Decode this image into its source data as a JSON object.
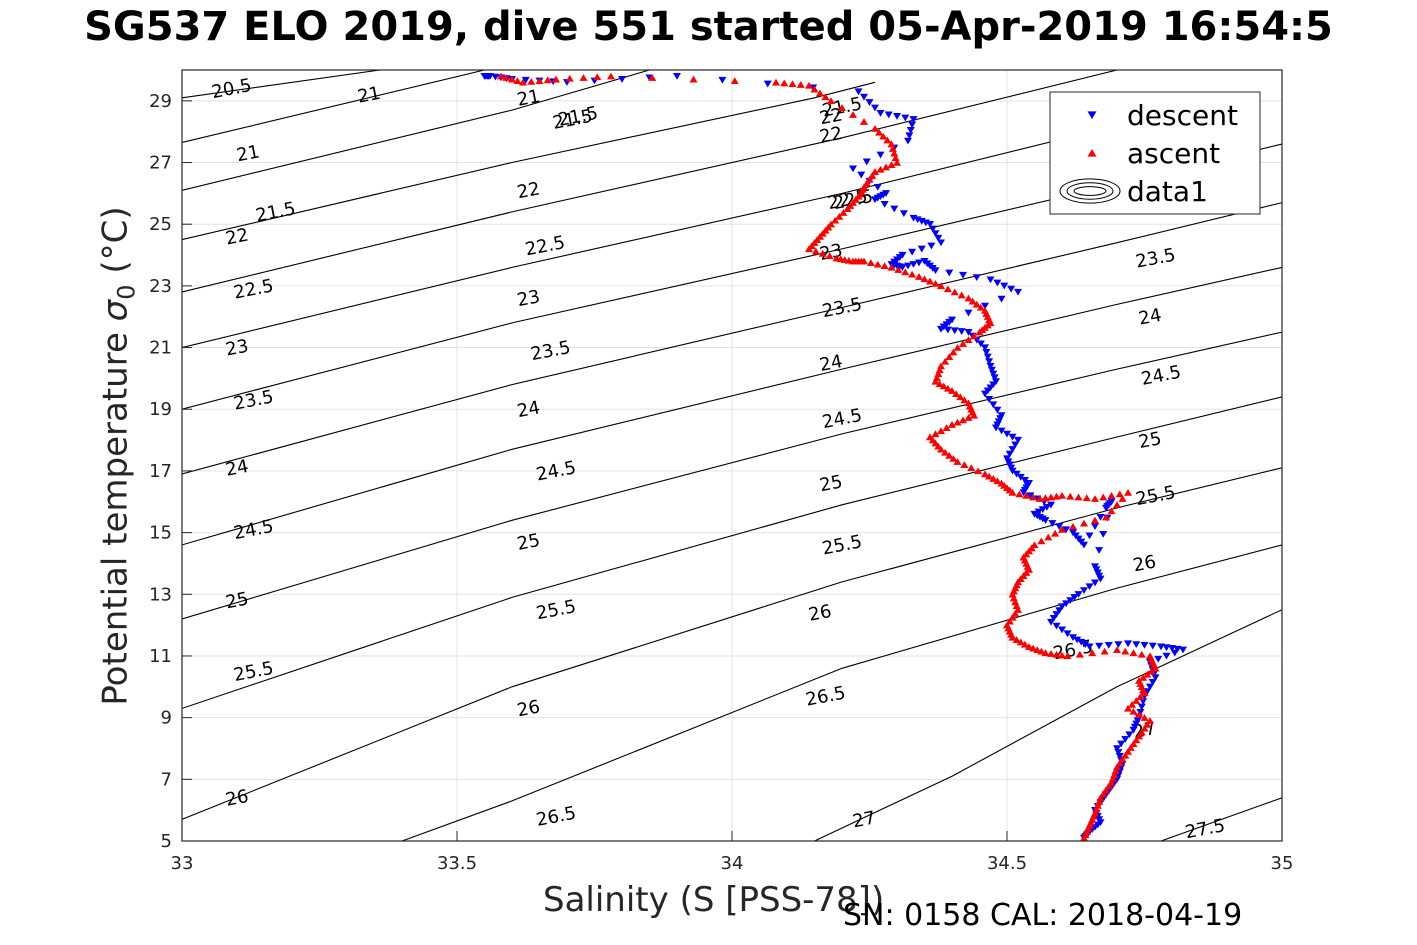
{
  "chart_data": {
    "type": "scatter",
    "title": "SG537 ELO 2019, dive 551 started 05-Apr-2019 16:54:5",
    "xlabel": "Salinity (S [PSS-78])",
    "ylabel_main": "Potential temperature",
    "ylabel_symbol": "σ",
    "ylabel_subscript": "0",
    "ylabel_unit": "(°C)",
    "footer": "SN: 0158  CAL: 2018-04-19",
    "xlim": [
      33,
      35
    ],
    "ylim": [
      5,
      30
    ],
    "xticks": [
      "33",
      "33.5",
      "34",
      "34.5",
      "35"
    ],
    "yticks": [
      "5",
      "7",
      "9",
      "11",
      "13",
      "15",
      "17",
      "19",
      "21",
      "23",
      "25",
      "27",
      "29"
    ],
    "grid": true,
    "legend_position": "top-right",
    "legend": [
      {
        "label": "descent",
        "marker": "triangle-down",
        "color": "#0000ff"
      },
      {
        "label": "ascent",
        "marker": "triangle-up",
        "color": "#ff0000"
      },
      {
        "label": "data1",
        "marker": "contour"
      }
    ],
    "contours": [
      {
        "level": "20.5",
        "p": [
          [
            33.0,
            29.1
          ],
          [
            33.36,
            30.0
          ]
        ]
      },
      {
        "level": "21",
        "p": [
          [
            33.0,
            27.65
          ],
          [
            33.55,
            30.0
          ]
        ]
      },
      {
        "level": "21.5",
        "p": [
          [
            33.0,
            26.1
          ],
          [
            33.6,
            28.7
          ],
          [
            33.85,
            30.0
          ]
        ]
      },
      {
        "level": "22",
        "p": [
          [
            33.0,
            24.5
          ],
          [
            33.6,
            27.0
          ],
          [
            34.15,
            29.1
          ],
          [
            34.26,
            29.6
          ]
        ]
      },
      {
        "level": "22.5",
        "p": [
          [
            33.0,
            22.8
          ],
          [
            33.6,
            25.4
          ],
          [
            34.2,
            27.8
          ],
          [
            34.7,
            30.0
          ]
        ]
      },
      {
        "level": "23",
        "p": [
          [
            33.0,
            21.0
          ],
          [
            33.6,
            23.6
          ],
          [
            34.2,
            26.0
          ],
          [
            34.7,
            28.2
          ],
          [
            34.95,
            29.1
          ]
        ]
      },
      {
        "level": "23.5",
        "p": [
          [
            33.0,
            19.0
          ],
          [
            33.6,
            21.8
          ],
          [
            34.2,
            24.2
          ],
          [
            34.7,
            26.3
          ],
          [
            35.0,
            27.6
          ]
        ]
      },
      {
        "level": "24",
        "p": [
          [
            33.0,
            16.9
          ],
          [
            33.6,
            19.8
          ],
          [
            34.2,
            22.3
          ],
          [
            34.7,
            24.4
          ],
          [
            35.0,
            25.7
          ]
        ]
      },
      {
        "level": "24.5",
        "p": [
          [
            33.0,
            14.6
          ],
          [
            33.6,
            17.7
          ],
          [
            34.2,
            20.3
          ],
          [
            34.7,
            22.4
          ],
          [
            35.0,
            23.6
          ]
        ]
      },
      {
        "level": "25",
        "p": [
          [
            33.0,
            12.2
          ],
          [
            33.6,
            15.4
          ],
          [
            34.2,
            18.2
          ],
          [
            34.7,
            20.3
          ],
          [
            35.0,
            21.5
          ]
        ]
      },
      {
        "level": "25.5",
        "p": [
          [
            33.0,
            9.3
          ],
          [
            33.6,
            12.9
          ],
          [
            34.2,
            15.9
          ],
          [
            34.7,
            18.1
          ],
          [
            35.0,
            19.4
          ]
        ]
      },
      {
        "level": "26",
        "p": [
          [
            33.0,
            5.7
          ],
          [
            33.6,
            10.0
          ],
          [
            34.2,
            13.4
          ],
          [
            34.7,
            15.8
          ],
          [
            35.0,
            17.1
          ]
        ]
      },
      {
        "level": "26.5",
        "p": [
          [
            33.4,
            5.0
          ],
          [
            33.6,
            6.3
          ],
          [
            34.2,
            10.6
          ],
          [
            34.7,
            13.2
          ],
          [
            35.0,
            14.6
          ]
        ]
      },
      {
        "level": "27",
        "p": [
          [
            34.15,
            5.0
          ],
          [
            34.4,
            7.1
          ],
          [
            34.7,
            10.0
          ],
          [
            35.0,
            12.5
          ]
        ]
      },
      {
        "level": "27.5",
        "p": [
          [
            34.78,
            5.0
          ],
          [
            35.0,
            6.4
          ]
        ]
      }
    ],
    "contour_labels": [
      {
        "text": "20.5",
        "s": 33.09,
        "t": 29.4
      },
      {
        "text": "21",
        "s": 33.34,
        "t": 29.2
      },
      {
        "text": "21.5",
        "s": 33.71,
        "t": 28.4
      },
      {
        "text": "22",
        "s": 34.18,
        "t": 28.5
      },
      {
        "text": "22.5",
        "s": 34.22,
        "t": 25.8
      },
      {
        "text": "23",
        "s": 34.18,
        "t": 24.1
      },
      {
        "text": "23.5",
        "s": 34.2,
        "t": 22.3
      },
      {
        "text": "24",
        "s": 34.18,
        "t": 20.5
      },
      {
        "text": "24.5",
        "s": 34.2,
        "t": 18.7
      },
      {
        "text": "25",
        "s": 34.18,
        "t": 16.6
      },
      {
        "text": "25.5",
        "s": 34.2,
        "t": 14.6
      },
      {
        "text": "26",
        "s": 34.16,
        "t": 12.4
      },
      {
        "text": "26.5",
        "s": 34.17,
        "t": 9.7
      },
      {
        "text": "27",
        "s": 34.24,
        "t": 5.7
      },
      {
        "text": "27.5",
        "s": 34.86,
        "t": 5.4
      },
      {
        "text": "21",
        "s": 33.12,
        "t": 27.3
      },
      {
        "text": "21.5",
        "s": 33.17,
        "t": 25.4
      },
      {
        "text": "22",
        "s": 33.1,
        "t": 24.6
      },
      {
        "text": "22.5",
        "s": 33.13,
        "t": 22.9
      },
      {
        "text": "23",
        "s": 33.1,
        "t": 21.0
      },
      {
        "text": "23.5",
        "s": 33.13,
        "t": 19.3
      },
      {
        "text": "24",
        "s": 33.1,
        "t": 17.1
      },
      {
        "text": "24.5",
        "s": 33.13,
        "t": 15.1
      },
      {
        "text": "25",
        "s": 33.1,
        "t": 12.8
      },
      {
        "text": "25.5",
        "s": 33.13,
        "t": 10.5
      },
      {
        "text": "26",
        "s": 33.1,
        "t": 6.4
      },
      {
        "text": "21",
        "s": 33.63,
        "t": 29.1
      },
      {
        "text": "21.5",
        "s": 33.72,
        "t": 28.5
      },
      {
        "text": "22",
        "s": 33.63,
        "t": 26.1
      },
      {
        "text": "22.5",
        "s": 33.66,
        "t": 24.3
      },
      {
        "text": "23",
        "s": 33.63,
        "t": 22.6
      },
      {
        "text": "23.5",
        "s": 33.67,
        "t": 20.9
      },
      {
        "text": "24",
        "s": 33.63,
        "t": 19.0
      },
      {
        "text": "24.5",
        "s": 33.68,
        "t": 17.0
      },
      {
        "text": "25",
        "s": 33.63,
        "t": 14.7
      },
      {
        "text": "25.5",
        "s": 33.68,
        "t": 12.5
      },
      {
        "text": "26",
        "s": 33.63,
        "t": 9.3
      },
      {
        "text": "26.5",
        "s": 33.68,
        "t": 5.8
      },
      {
        "text": "21.5",
        "s": 34.2,
        "t": 28.8
      },
      {
        "text": "22",
        "s": 34.18,
        "t": 27.9
      },
      {
        "text": "22.5",
        "s": 34.21,
        "t": 25.8
      },
      {
        "text": "23",
        "s": 34.18,
        "t": 24.1
      },
      {
        "text": "23.5",
        "s": 34.2,
        "t": 22.3
      },
      {
        "text": "24",
        "s": 34.18,
        "t": 20.5
      },
      {
        "text": "24.5",
        "s": 34.2,
        "t": 18.7
      },
      {
        "text": "25",
        "s": 34.18,
        "t": 16.6
      },
      {
        "text": "25.5",
        "s": 34.2,
        "t": 14.6
      },
      {
        "text": "26",
        "s": 34.16,
        "t": 12.4
      },
      {
        "text": "26.5",
        "s": 34.17,
        "t": 9.7
      },
      {
        "text": "27",
        "s": 34.24,
        "t": 5.7
      },
      {
        "text": "23.5",
        "s": 34.77,
        "t": 23.9
      },
      {
        "text": "24",
        "s": 34.76,
        "t": 22.0
      },
      {
        "text": "24.5",
        "s": 34.78,
        "t": 20.1
      },
      {
        "text": "25",
        "s": 34.76,
        "t": 18.0
      },
      {
        "text": "25.5",
        "s": 34.77,
        "t": 16.2
      },
      {
        "text": "26",
        "s": 34.75,
        "t": 14.0
      },
      {
        "text": "26.5",
        "s": 34.62,
        "t": 11.2
      },
      {
        "text": "27",
        "s": 34.75,
        "t": 8.6
      },
      {
        "text": "27.5",
        "s": 34.86,
        "t": 5.4
      }
    ],
    "series": [
      {
        "name": "descent",
        "color": "#0000ff",
        "marker": "triangle-down",
        "x": [
          33.55,
          33.56,
          33.6,
          33.7,
          33.9,
          34.23,
          34.27,
          34.33,
          34.32,
          34.22,
          34.28,
          34.26,
          34.33,
          34.36,
          34.38,
          34.31,
          34.29,
          34.31,
          34.35,
          34.37,
          34.47,
          34.52,
          34.4,
          34.38,
          34.43,
          34.46,
          34.47,
          34.48,
          34.46,
          34.49,
          34.48,
          34.52,
          34.5,
          34.51,
          34.54,
          34.53,
          34.58,
          34.55,
          34.57,
          34.62,
          34.64,
          34.68,
          34.69,
          34.66,
          34.67,
          34.63,
          34.6,
          34.58,
          34.62,
          34.65,
          34.72,
          34.78,
          34.82,
          34.76,
          34.77,
          34.75,
          34.74,
          34.73,
          34.7,
          34.71,
          34.7,
          34.68,
          34.66,
          34.67,
          34.65,
          34.64
        ],
        "y": [
          29.8,
          29.8,
          29.7,
          29.6,
          29.8,
          29.3,
          28.6,
          28.4,
          27.7,
          26.8,
          26.0,
          25.8,
          25.2,
          25.0,
          24.4,
          24.0,
          23.7,
          23.6,
          23.8,
          23.5,
          23.2,
          22.8,
          21.9,
          21.6,
          21.5,
          21.0,
          20.4,
          19.9,
          19.5,
          18.8,
          18.4,
          18.0,
          17.4,
          17.0,
          16.6,
          16.3,
          15.9,
          15.6,
          15.4,
          15.0,
          14.6,
          15.8,
          16.0,
          13.9,
          13.5,
          13.0,
          12.6,
          12.1,
          11.6,
          11.3,
          11.4,
          11.3,
          11.2,
          10.8,
          10.3,
          9.7,
          9.0,
          8.6,
          8.0,
          7.5,
          7.0,
          6.5,
          6.0,
          5.6,
          5.3,
          5.1
        ]
      },
      {
        "name": "ascent",
        "color": "#ff0000",
        "marker": "triangle-up",
        "x": [
          33.58,
          33.62,
          33.68,
          33.78,
          34.08,
          34.14,
          34.18,
          34.26,
          34.29,
          34.3,
          34.26,
          34.24,
          34.23,
          34.21,
          34.18,
          34.16,
          34.14,
          34.19,
          34.22,
          34.24,
          34.29,
          34.34,
          34.38,
          34.43,
          34.46,
          34.47,
          34.45,
          34.41,
          34.38,
          34.37,
          34.4,
          34.43,
          34.44,
          34.4,
          34.36,
          34.38,
          34.41,
          34.46,
          34.49,
          34.51,
          34.56,
          34.6,
          34.66,
          34.72,
          34.68,
          34.6,
          34.55,
          34.53,
          34.54,
          34.52,
          34.51,
          34.52,
          34.5,
          34.51,
          34.54,
          34.57,
          34.61,
          34.7,
          34.76,
          34.77,
          34.74,
          34.75,
          34.72,
          34.76,
          34.74,
          34.72,
          34.7,
          34.69,
          34.67,
          34.66,
          34.65,
          34.64
        ],
        "y": [
          29.8,
          29.6,
          29.7,
          29.8,
          29.6,
          29.5,
          29.0,
          28.1,
          27.6,
          27.0,
          26.7,
          26.2,
          25.9,
          25.5,
          25.0,
          24.6,
          24.2,
          23.9,
          23.8,
          23.8,
          23.6,
          23.3,
          23.0,
          22.6,
          22.2,
          21.8,
          21.5,
          21.0,
          20.4,
          19.9,
          19.6,
          19.2,
          18.8,
          18.5,
          18.1,
          17.7,
          17.3,
          16.9,
          16.6,
          16.3,
          16.1,
          16.2,
          16.1,
          16.3,
          15.5,
          15.1,
          14.6,
          14.2,
          13.8,
          13.4,
          13.0,
          12.5,
          12.0,
          11.6,
          11.3,
          11.1,
          11.0,
          11.2,
          11.0,
          10.6,
          10.2,
          9.8,
          9.3,
          8.9,
          8.4,
          7.9,
          7.4,
          6.9,
          6.4,
          5.9,
          5.5,
          5.1
        ]
      }
    ]
  }
}
